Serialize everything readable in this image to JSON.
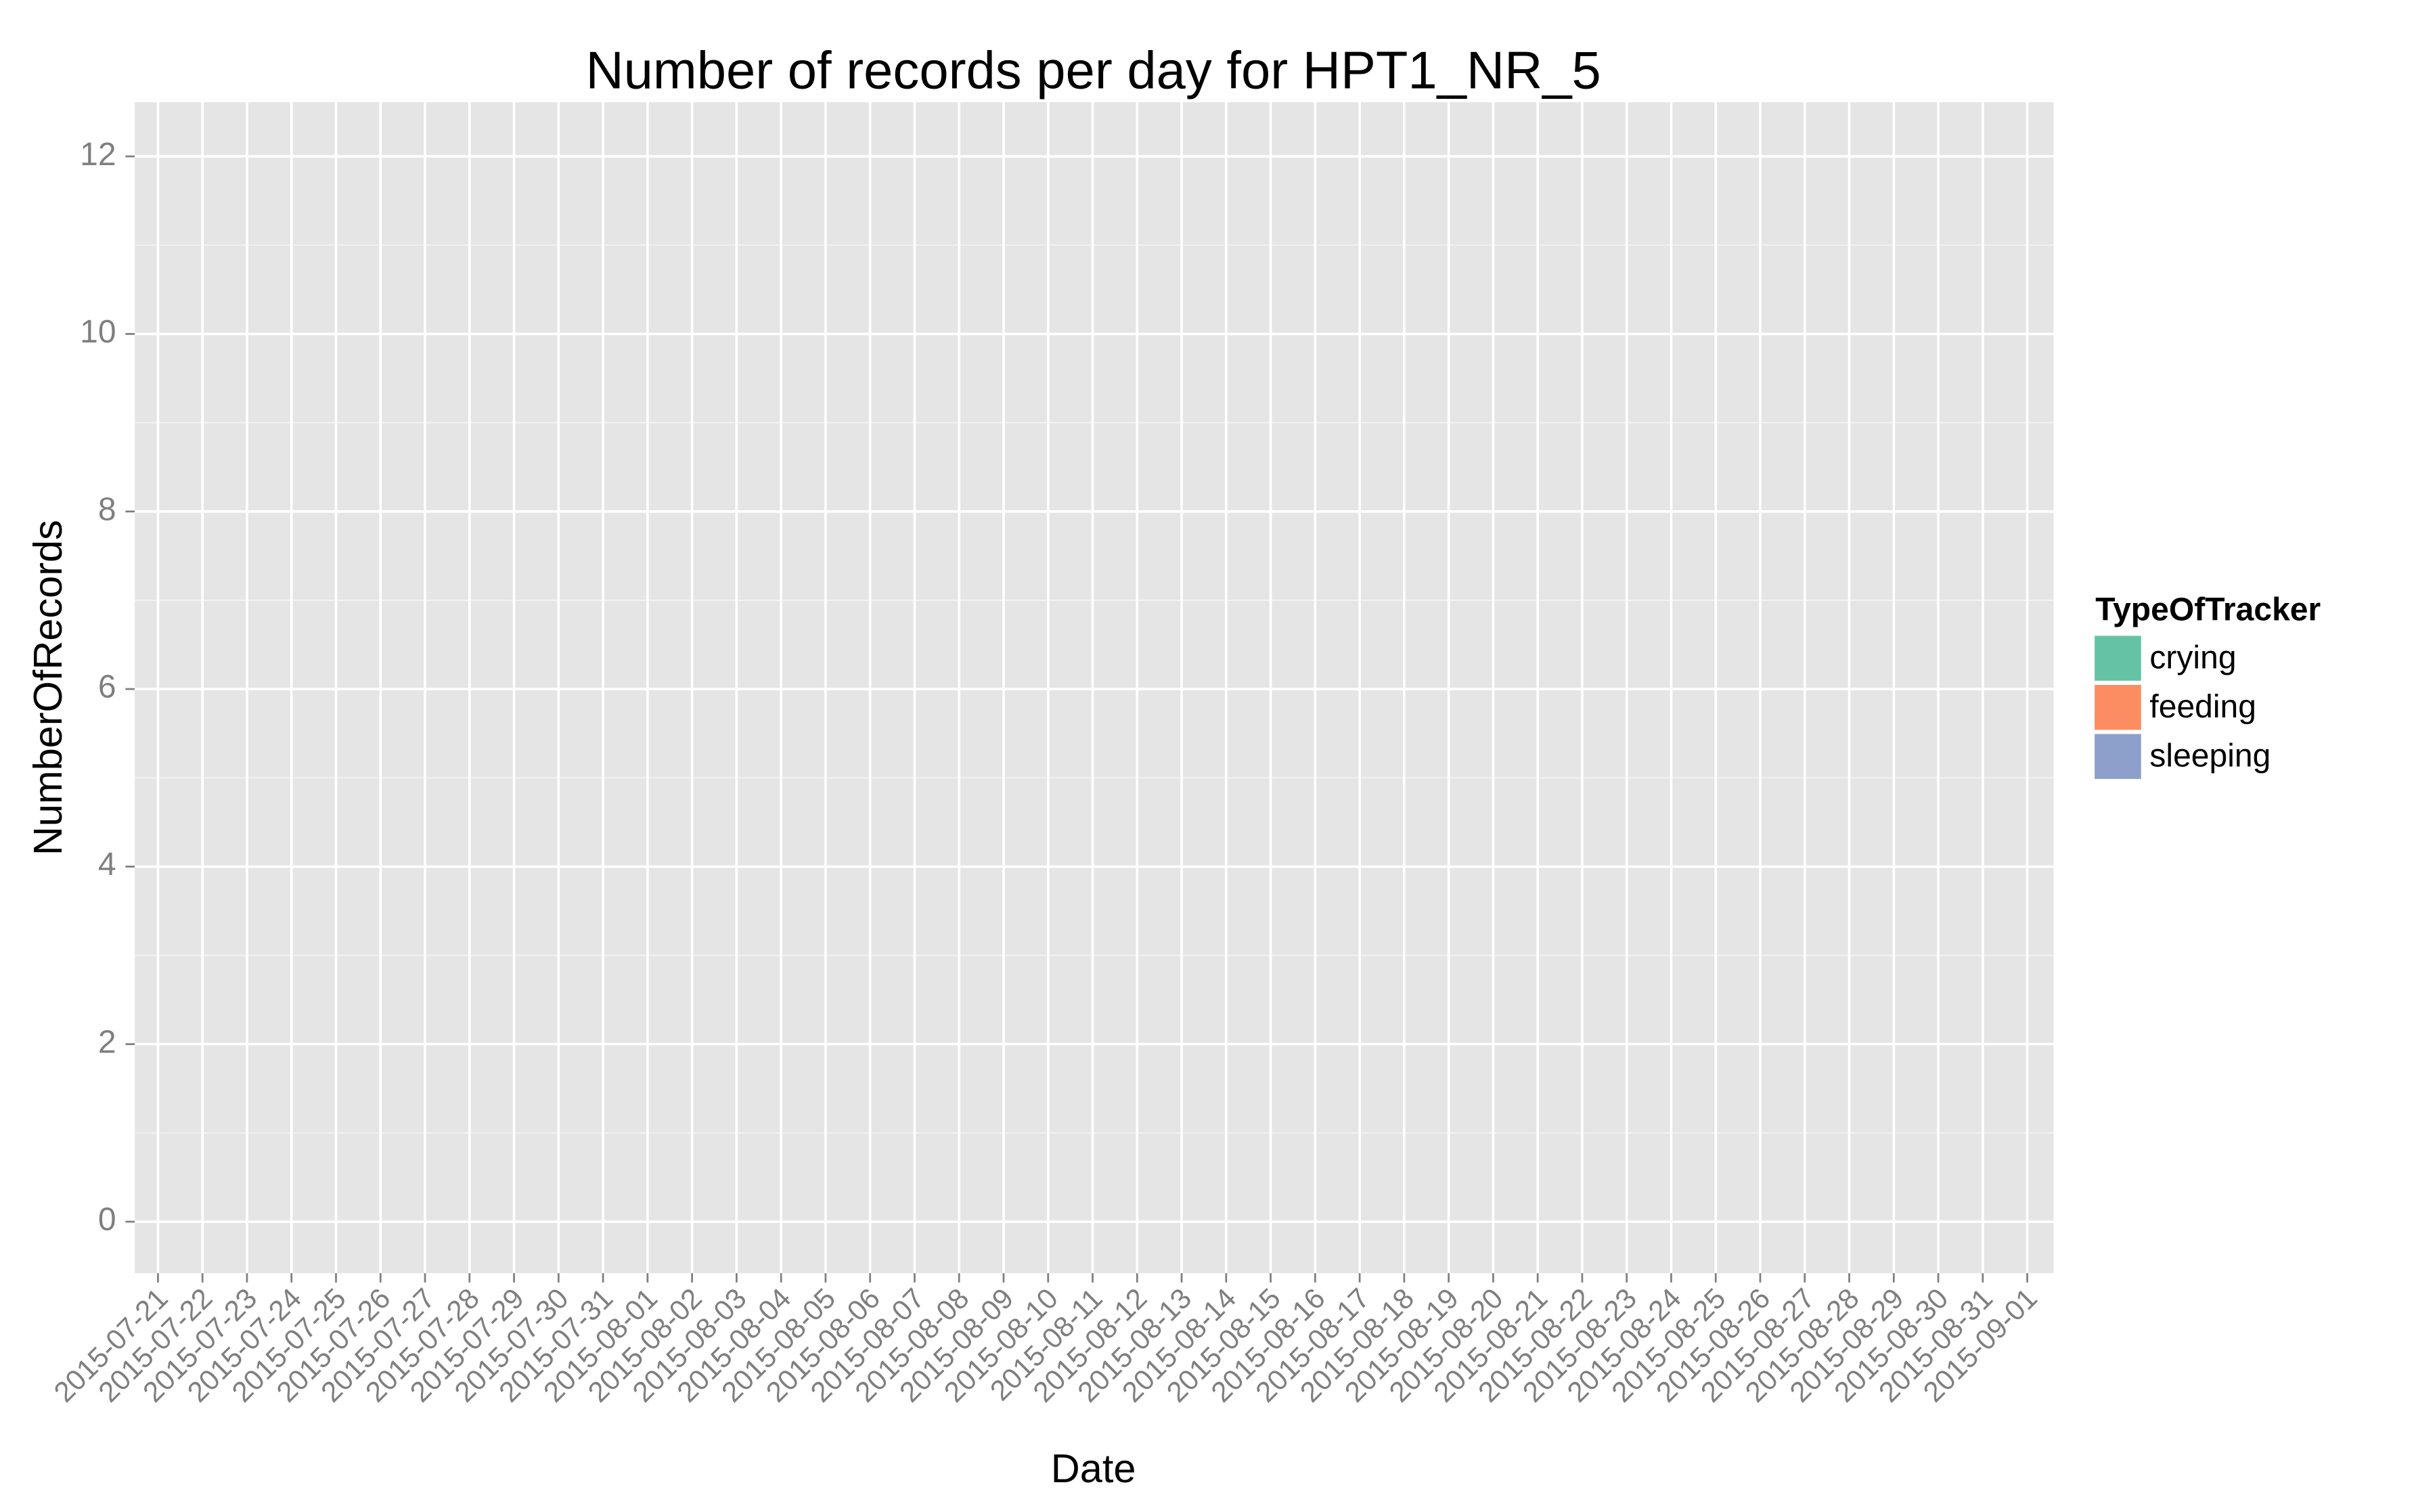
{
  "chart_data": {
    "type": "bar",
    "stacked": true,
    "title": "Number of records per day for HPT1_NR_5",
    "x_label": "Date",
    "y_label": "NumberOfRecords",
    "legend_title": "TypeOfTracker",
    "legend_position": "right",
    "categories": [
      "2015-07-21",
      "2015-07-22",
      "2015-07-23",
      "2015-07-24",
      "2015-07-25",
      "2015-07-26",
      "2015-07-27",
      "2015-07-28",
      "2015-07-29",
      "2015-07-30",
      "2015-07-31",
      "2015-08-01",
      "2015-08-02",
      "2015-08-03",
      "2015-08-04",
      "2015-08-05",
      "2015-08-06",
      "2015-08-07",
      "2015-08-08",
      "2015-08-09",
      "2015-08-10",
      "2015-08-11",
      "2015-08-12",
      "2015-08-13",
      "2015-08-14",
      "2015-08-15",
      "2015-08-16",
      "2015-08-17",
      "2015-08-18",
      "2015-08-19",
      "2015-08-20",
      "2015-08-21",
      "2015-08-22",
      "2015-08-23",
      "2015-08-24",
      "2015-08-25",
      "2015-08-26",
      "2015-08-27",
      "2015-08-28",
      "2015-08-29",
      "2015-08-30",
      "2015-08-31",
      "2015-09-01"
    ],
    "series": [
      {
        "name": "crying",
        "color": "#66c2a5",
        "values": [
          0,
          0,
          0,
          0,
          0,
          0,
          0,
          0,
          0,
          0,
          0,
          0,
          0,
          0,
          0,
          0,
          0,
          0,
          0,
          0,
          0,
          0,
          0,
          0,
          0,
          0,
          0,
          0,
          0,
          0,
          0,
          0,
          0,
          0,
          0,
          0,
          0,
          0,
          0,
          0,
          0,
          0,
          0
        ]
      },
      {
        "name": "feeding",
        "color": "#fc8d62",
        "values": [
          0,
          0,
          0,
          0,
          0,
          0,
          0,
          0,
          0,
          0,
          0,
          0,
          0,
          0,
          0,
          0,
          0,
          0,
          0,
          0,
          0,
          0,
          0,
          0,
          0,
          0,
          0,
          0,
          0,
          0,
          0,
          0,
          0,
          0,
          0,
          0,
          0,
          0,
          0,
          0,
          0,
          0,
          0
        ]
      },
      {
        "name": "sleeping",
        "color": "#8da0cb",
        "values": [
          0,
          0,
          0,
          0,
          0,
          0,
          0,
          0,
          0,
          0,
          0,
          0,
          0,
          0,
          0,
          0,
          0,
          0,
          0,
          0,
          0,
          0,
          0,
          0,
          0,
          0,
          0,
          0,
          0,
          0,
          0,
          0,
          0,
          0,
          0,
          0,
          0,
          0,
          0,
          0,
          0,
          0,
          0
        ]
      }
    ],
    "ylim": [
      -0.58,
      12.61
    ],
    "yticks": [
      0,
      2,
      4,
      6,
      8,
      10,
      12
    ],
    "grid": true
  }
}
